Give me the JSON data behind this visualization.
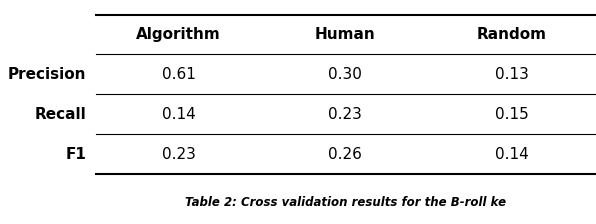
{
  "columns": [
    "",
    "Algorithm",
    "Human",
    "Random"
  ],
  "rows": [
    [
      "Precision",
      "0.61",
      "0.30",
      "0.13"
    ],
    [
      "Recall",
      "0.14",
      "0.23",
      "0.15"
    ],
    [
      "F1",
      "0.23",
      "0.26",
      "0.14"
    ]
  ],
  "bg_color": "#ffffff",
  "line_color": "#000000",
  "font_size": 11,
  "header_font_size": 11,
  "caption": "Table 2: Cross validation results for the B-roll ke"
}
